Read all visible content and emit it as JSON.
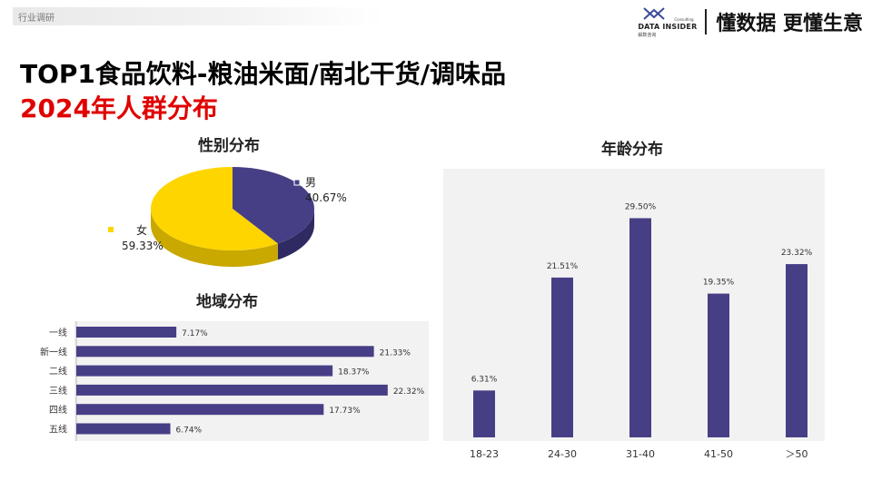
{
  "header": {
    "tag": "行业调研",
    "logo_main": "DATA INSIDER",
    "logo_sub": "解数咨询",
    "logo_small": "Consulting",
    "slogan": "懂数据 更懂生意"
  },
  "titles": {
    "line1": "TOP1食品饮料-粮油米面/南北干货/调味品",
    "line2": "2024年人群分布"
  },
  "colors": {
    "purple": "#463f86",
    "yellow": "#ffd500",
    "red": "#e00000"
  },
  "chart_data": [
    {
      "type": "pie",
      "title": "性别分布",
      "categories": [
        "男",
        "女"
      ],
      "values": [
        40.67,
        59.33
      ],
      "labels": [
        "40.67%",
        "59.33%"
      ],
      "colors": [
        "#463f86",
        "#ffd500"
      ]
    },
    {
      "type": "bar",
      "orientation": "horizontal",
      "title": "地域分布",
      "categories": [
        "一线",
        "新一线",
        "二线",
        "三线",
        "四线",
        "五线"
      ],
      "values": [
        7.17,
        21.33,
        18.37,
        22.32,
        17.73,
        6.74
      ],
      "labels": [
        "7.17%",
        "21.33%",
        "18.37%",
        "22.32%",
        "17.73%",
        "6.74%"
      ],
      "xlim": [
        0,
        25
      ]
    },
    {
      "type": "bar",
      "title": "年龄分布",
      "categories": [
        "18-23",
        "24-30",
        "31-40",
        "41-50",
        "＞50"
      ],
      "values": [
        6.31,
        21.51,
        29.5,
        19.35,
        23.32
      ],
      "labels": [
        "6.31%",
        "21.51%",
        "29.50%",
        "19.35%",
        "23.32%"
      ],
      "ylim": [
        0,
        32
      ]
    }
  ]
}
